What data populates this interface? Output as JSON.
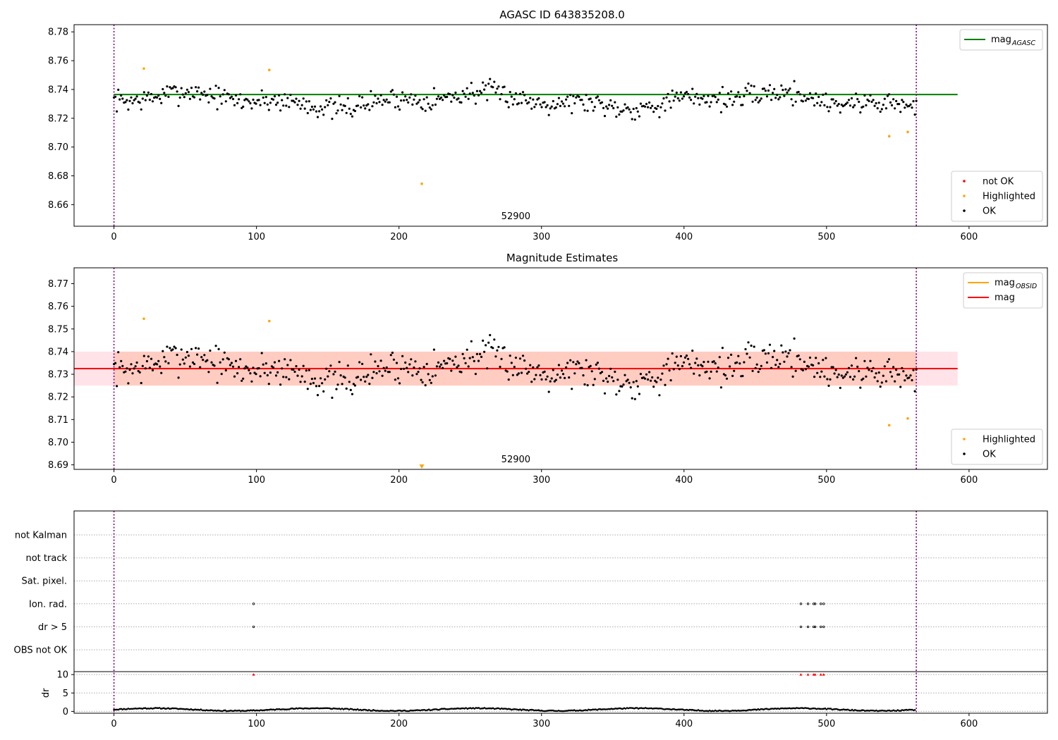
{
  "chart_data": [
    {
      "type": "scatter",
      "title": "AGASC ID 643835208.0",
      "xlim": [
        -28,
        655
      ],
      "ylim": [
        8.645,
        8.785
      ],
      "yticks": [
        8.66,
        8.68,
        8.7,
        8.72,
        8.74,
        8.76,
        8.78
      ],
      "ytick_labels": [
        "8.66",
        "8.68",
        "8.70",
        "8.72",
        "8.74",
        "8.76",
        "8.78"
      ],
      "xticks": [
        0,
        100,
        200,
        300,
        400,
        500,
        600
      ],
      "xtick_labels": [
        "0",
        "100",
        "200",
        "300",
        "400",
        "500",
        "600"
      ],
      "annotation": {
        "text": "52900",
        "x": 282,
        "y": 8.649
      },
      "vlines": [
        0,
        563
      ],
      "hlines": [
        {
          "name": "mag$_{AGASC}$",
          "y": 8.7365,
          "x0": 0,
          "x1": 592,
          "color": "#008000"
        }
      ],
      "series": [
        {
          "name": "not OK",
          "color": "#ff0000",
          "points": []
        },
        {
          "name": "Highlighted",
          "color": "#ffa500",
          "points": [
            [
              21,
              8.7545
            ],
            [
              109,
              8.7535
            ],
            [
              216,
              8.6745
            ],
            [
              544,
              8.7075
            ],
            [
              557,
              8.7105
            ]
          ]
        },
        {
          "name": "OK",
          "color": "#000000",
          "seed": 7,
          "n": 560,
          "center": 8.7325,
          "noise": 0.005
        }
      ],
      "legend_top": {
        "location": "upper right",
        "entries": [
          {
            "text": "mag",
            "sub": "AGASC",
            "color": "#008000"
          }
        ]
      },
      "legend_bottom": {
        "location": "lower right",
        "entries": [
          {
            "text": "not OK",
            "color": "#ff0000"
          },
          {
            "text": "Highlighted",
            "color": "#ffa500"
          },
          {
            "text": "OK",
            "color": "#000000"
          }
        ]
      }
    },
    {
      "type": "scatter",
      "title": "Magnitude Estimates",
      "xlim": [
        -28,
        655
      ],
      "ylim": [
        8.688,
        8.777
      ],
      "yticks": [
        8.69,
        8.7,
        8.71,
        8.72,
        8.73,
        8.74,
        8.75,
        8.76,
        8.77
      ],
      "ytick_labels": [
        "8.69",
        "8.70",
        "8.71",
        "8.72",
        "8.73",
        "8.74",
        "8.75",
        "8.76",
        "8.77"
      ],
      "xticks": [
        0,
        100,
        200,
        300,
        400,
        500,
        600
      ],
      "xtick_labels": [
        "0",
        "100",
        "200",
        "300",
        "400",
        "500",
        "600"
      ],
      "annotation": {
        "text": "52900",
        "x": 282,
        "y": 8.6905
      },
      "vlines": [
        0,
        563
      ],
      "bands": [
        {
          "y0": 8.725,
          "y1": 8.74,
          "x0": -28,
          "x1": 592,
          "color": "#ffc0cb",
          "opacity": 0.45
        },
        {
          "y0": 8.725,
          "y1": 8.74,
          "x0": 0,
          "x1": 563,
          "color": "#ffa07a",
          "opacity": 0.35
        }
      ],
      "hlines": [
        {
          "name": "mag",
          "y": 8.7325,
          "x0": -28,
          "x1": 592,
          "color": "#ff0000"
        }
      ],
      "series": [
        {
          "name": "Highlighted",
          "color": "#ffa500",
          "points": [
            [
              21,
              8.7545
            ],
            [
              109,
              8.7535
            ],
            [
              544,
              8.7075
            ],
            [
              557,
              8.7105
            ]
          ],
          "clipped": [
            [
              216,
              8.689
            ]
          ]
        },
        {
          "name": "OK",
          "color": "#000000",
          "seed": 7,
          "n": 560,
          "center": 8.7325,
          "noise": 0.005
        }
      ],
      "legend_top": {
        "location": "upper right",
        "entries": [
          {
            "text": "mag",
            "sub": "OBSID",
            "color": "#ffa500"
          },
          {
            "text": "mag",
            "sub": "",
            "color": "#ff0000"
          }
        ]
      },
      "legend_bottom": {
        "location": "lower right",
        "entries": [
          {
            "text": "Highlighted",
            "color": "#ffa500"
          },
          {
            "text": "OK",
            "color": "#000000"
          }
        ]
      }
    },
    {
      "type": "scatter",
      "title": "",
      "xlim": [
        -28,
        655
      ],
      "flag_labels": [
        "not Kalman",
        "not track",
        "Sat. pixel.",
        "Ion. rad.",
        "dr > 5",
        "OBS not OK"
      ],
      "flag_points": {
        "Ion. rad.": [
          98,
          482,
          487,
          491,
          492,
          496,
          498
        ],
        "dr > 5": [
          98,
          482,
          487,
          491,
          492,
          496,
          498
        ]
      },
      "vlines": [
        0,
        563
      ],
      "dr": {
        "ylabel": "dr",
        "ylim": [
          -0.5,
          10.8
        ],
        "yticks": [
          0,
          5,
          10
        ],
        "ytick_labels": [
          "0",
          "5",
          "10"
        ],
        "n": 563,
        "outliers": [
          98,
          482,
          487,
          491,
          492,
          496,
          498
        ],
        "outlier_color": "#ff0000"
      },
      "xticks": [
        0,
        100,
        200,
        300,
        400,
        500,
        600
      ],
      "xtick_labels": [
        "0",
        "100",
        "200",
        "300",
        "400",
        "500",
        "600"
      ]
    }
  ]
}
